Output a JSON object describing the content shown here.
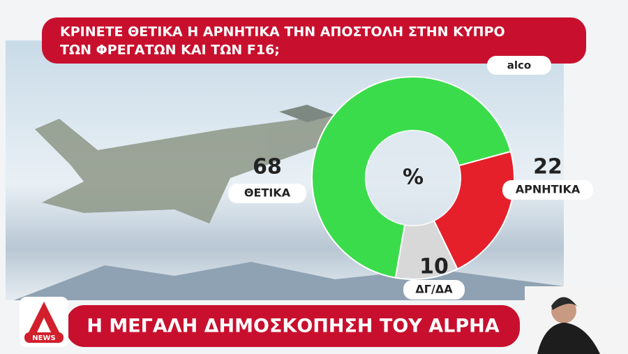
{
  "chart_data": {
    "type": "donut",
    "title": [
      "ΚΡΙΝΕΤΕ ΘΕΤΙΚΑ Η ΑΡΝΗΤΙΚΑ ΤΗΝ ΑΠΟΣΤΟΛΗ ΣΤΗΝ ΚΥΠΡΟ",
      "ΤΩΝ ΦΡΕΓΑΤΩΝ ΚΑΙ ΤΩΝ F16;"
    ],
    "source": "alco",
    "center_label": "%",
    "categories": [
      "ΘΕΤΙΚΑ",
      "ΑΡΝΗΤΙΚΑ",
      "ΔΓ/ΔΑ"
    ],
    "values": [
      68,
      22,
      10
    ],
    "colors": [
      "#3bdc4c",
      "#e5202b",
      "#d8d8d8"
    ]
  },
  "banner": "Η ΜΕΓΑΛΗ ΔΗΜΟΣΚΟΠΗΣΗ ΤΟΥ ALPHA",
  "logo": "NEWS"
}
